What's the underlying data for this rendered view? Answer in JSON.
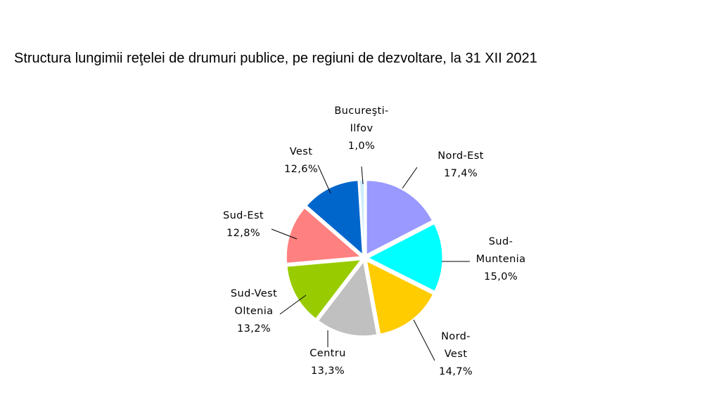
{
  "title": "Structura lungimii reţelei de drumuri publice, pe regiuni de dezvoltare, la 31 XII 2021",
  "chart_data": {
    "type": "pie",
    "title": "Structura lungimii reţelei de drumuri publice, pe regiuni de dezvoltare, la 31 XII 2021",
    "legend": "none",
    "slices": [
      {
        "label": "Nord-Est",
        "value": 17.4,
        "value_label": "17,4%",
        "color": "#9999FF"
      },
      {
        "label": "Sud-Muntenia",
        "label_lines": [
          "Sud-",
          "Muntenia"
        ],
        "value": 15.0,
        "value_label": "15,0%",
        "color": "#00FFFF"
      },
      {
        "label": "Nord-Vest",
        "label_lines": [
          "Nord-",
          "Vest"
        ],
        "value": 14.7,
        "value_label": "14,7%",
        "color": "#FFCC00"
      },
      {
        "label": "Centru",
        "value": 13.3,
        "value_label": "13,3%",
        "color": "#C0C0C0"
      },
      {
        "label": "Sud-Vest Oltenia",
        "label_lines": [
          "Sud-Vest",
          "Oltenia"
        ],
        "value": 13.2,
        "value_label": "13,2%",
        "color": "#99CC00"
      },
      {
        "label": "Sud-Est",
        "value": 12.8,
        "value_label": "12,8%",
        "color": "#FF8080"
      },
      {
        "label": "Vest",
        "value": 12.6,
        "value_label": "12,6%",
        "color": "#0066CC"
      },
      {
        "label": "Bucureşti-Ilfov",
        "label_lines": [
          "Bucureşti-",
          "Ilfov"
        ],
        "value": 1.0,
        "value_label": "1,0%",
        "color": "#CCECFF"
      }
    ]
  }
}
